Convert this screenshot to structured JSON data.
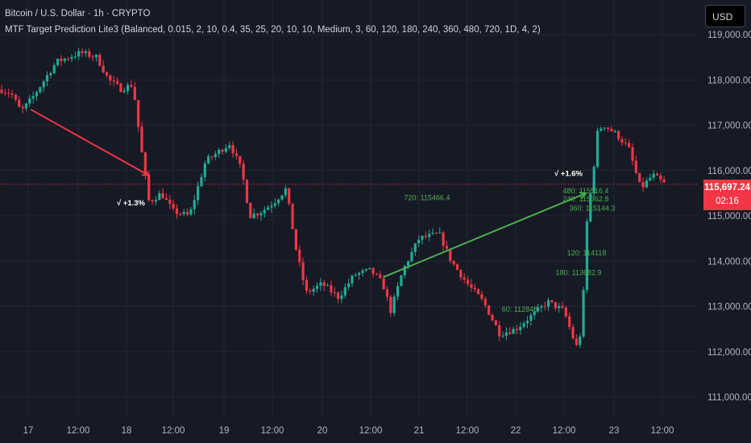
{
  "header": {
    "symbol_line": "Bitcoin / U.S. Dollar · 1h · CRYPTO",
    "indicator_line": "MTF Target Prediction Lite3 (Balanced, 0.015, 2, 10, 0.4, 35, 25, 20, 10, 10, Medium, 3, 60, 120, 180, 240, 360, 480, 720, 1D, 4, 2)"
  },
  "currency_button": "USD",
  "last_price": {
    "value": "115,697.24",
    "countdown": "02:16"
  },
  "colors": {
    "background": "#161a25",
    "up": "#22ab94",
    "down": "#f23645",
    "grid": "#232733",
    "text": "#b2b5be",
    "prediction_up": "#4caf50",
    "prediction_down": "#f23645"
  },
  "chart_data": {
    "type": "candlestick",
    "ylim": [
      110500,
      119500
    ],
    "y_ticks": [
      111000,
      112000,
      113000,
      114000,
      115000,
      116000,
      117000,
      118000,
      119000
    ],
    "y_tick_labels": [
      "111,000.00",
      "112,000.00",
      "113,000.00",
      "114,000.00",
      "115,000.00",
      "116,000.00",
      "117,000.00",
      "118,000.00",
      "119,000.00"
    ],
    "x_tick_labels": [
      "17",
      "12:00",
      "18",
      "12:00",
      "19",
      "12:00",
      "20",
      "12:00",
      "21",
      "12:00",
      "22",
      "12:00",
      "23",
      "12:00"
    ],
    "last_price": 115697.24,
    "anchors": [
      [
        0,
        117800
      ],
      [
        14,
        117700
      ],
      [
        26,
        117300
      ],
      [
        40,
        117600
      ],
      [
        70,
        118400
      ],
      [
        100,
        118600
      ],
      [
        120,
        118500
      ],
      [
        135,
        118000
      ],
      [
        150,
        117800
      ],
      [
        165,
        117900
      ],
      [
        175,
        116500
      ],
      [
        185,
        115300
      ],
      [
        200,
        115500
      ],
      [
        215,
        115100
      ],
      [
        235,
        115000
      ],
      [
        255,
        116200
      ],
      [
        270,
        116400
      ],
      [
        285,
        116600
      ],
      [
        300,
        116000
      ],
      [
        310,
        115000
      ],
      [
        325,
        115100
      ],
      [
        340,
        115300
      ],
      [
        355,
        115600
      ],
      [
        368,
        114200
      ],
      [
        380,
        113300
      ],
      [
        400,
        113500
      ],
      [
        420,
        113200
      ],
      [
        440,
        113700
      ],
      [
        460,
        113800
      ],
      [
        475,
        113500
      ],
      [
        485,
        112900
      ],
      [
        500,
        113800
      ],
      [
        520,
        114500
      ],
      [
        545,
        114600
      ],
      [
        560,
        114000
      ],
      [
        580,
        113500
      ],
      [
        600,
        113100
      ],
      [
        620,
        112400
      ],
      [
        640,
        112500
      ],
      [
        660,
        112800
      ],
      [
        680,
        113100
      ],
      [
        700,
        112900
      ],
      [
        715,
        112100
      ],
      [
        722,
        112500
      ],
      [
        728,
        114800
      ],
      [
        735,
        115800
      ],
      [
        742,
        116900
      ],
      [
        750,
        117000
      ],
      [
        765,
        116800
      ],
      [
        780,
        116500
      ],
      [
        795,
        115600
      ],
      [
        810,
        115900
      ],
      [
        825,
        115700
      ]
    ],
    "predictions": [
      {
        "from": [
          38,
          117350
        ],
        "to": [
          184,
          115900
        ],
        "color": "#f23645",
        "label": "√ +1.3%",
        "label_price": 115300
      },
      {
        "from": [
          476,
          113650
        ],
        "to": [
          727,
          115500
        ],
        "color": "#4caf50",
        "label": "√ +1.6%",
        "label_price": 115950
      }
    ],
    "target_labels": [
      {
        "text": "720: 115466.4",
        "price": 115400
      },
      {
        "text": "480: 115516.4",
        "price": 115550
      },
      {
        "text": "240: 115362.8",
        "price": 115370
      },
      {
        "text": "360: 115144.3",
        "price": 115170
      },
      {
        "text": "120: 114118",
        "price": 114180
      },
      {
        "text": "180: 113682.9",
        "price": 113750
      },
      {
        "text": "60: 112848",
        "price": 112940
      }
    ]
  }
}
